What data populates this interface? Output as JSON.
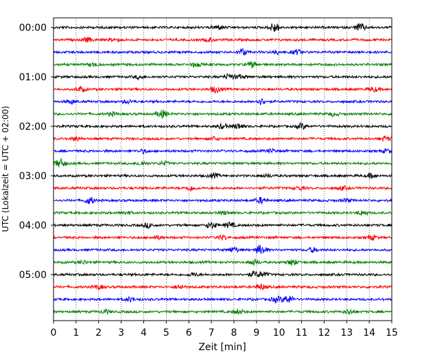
{
  "chart_data": {
    "type": "line",
    "title": "",
    "xlabel": "Zeit  [min]",
    "ylabel": "UTC (Lokalzeit = UTC + 02:00)",
    "xlim": [
      0,
      15
    ],
    "xticks": [
      "0",
      "1",
      "2",
      "3",
      "4",
      "5",
      "6",
      "7",
      "8",
      "9",
      "10",
      "11",
      "12",
      "13",
      "14",
      "15"
    ],
    "vertical_grid": "dotted",
    "row_minutes": 15,
    "row_colors": [
      "#000000",
      "#ff0000",
      "#0000ff",
      "#008000"
    ],
    "hour_labels": [
      "00:00",
      "01:00",
      "02:00",
      "03:00",
      "04:00",
      "05:00"
    ],
    "series": [
      {
        "start": "00:00",
        "events": [
          [
            7.3,
            0.4
          ],
          [
            9.8,
            0.9
          ],
          [
            13.6,
            0.7
          ]
        ]
      },
      {
        "start": "00:15",
        "events": [
          [
            1.5,
            0.4
          ],
          [
            2.7,
            0.3
          ],
          [
            6.9,
            0.3
          ]
        ]
      },
      {
        "start": "00:30",
        "events": [
          [
            8.4,
            0.6
          ],
          [
            10.8,
            0.4
          ],
          [
            9.9,
            0.3
          ]
        ]
      },
      {
        "start": "00:45",
        "events": [
          [
            1.8,
            0.3
          ],
          [
            6.3,
            0.4
          ],
          [
            8.8,
            0.5
          ]
        ]
      },
      {
        "start": "01:00",
        "events": [
          [
            3.8,
            0.3
          ],
          [
            7.8,
            0.5
          ],
          [
            8.3,
            0.3
          ]
        ]
      },
      {
        "start": "01:15",
        "events": [
          [
            1.2,
            0.4
          ],
          [
            7.2,
            0.6
          ],
          [
            14.2,
            0.4
          ]
        ]
      },
      {
        "start": "01:30",
        "events": [
          [
            0.8,
            0.3
          ],
          [
            3.3,
            0.3
          ],
          [
            9.2,
            0.5
          ]
        ]
      },
      {
        "start": "01:45",
        "events": [
          [
            2.6,
            0.3
          ],
          [
            4.8,
            0.7
          ],
          [
            12.4,
            0.3
          ]
        ]
      },
      {
        "start": "02:00",
        "events": [
          [
            7.5,
            0.4
          ],
          [
            8.2,
            0.5
          ],
          [
            11.0,
            0.5
          ]
        ]
      },
      {
        "start": "02:15",
        "events": [
          [
            1.0,
            0.3
          ],
          [
            7.1,
            0.3
          ],
          [
            14.7,
            0.4
          ]
        ]
      },
      {
        "start": "02:30",
        "events": [
          [
            4.0,
            0.3
          ],
          [
            9.7,
            0.3
          ],
          [
            14.8,
            0.3
          ]
        ]
      },
      {
        "start": "02:45",
        "events": [
          [
            0.3,
            0.8
          ],
          [
            3.9,
            0.4
          ],
          [
            4.9,
            0.3
          ]
        ]
      },
      {
        "start": "03:00",
        "events": [
          [
            7.1,
            0.4
          ],
          [
            9.5,
            0.3
          ],
          [
            14.1,
            0.4
          ]
        ]
      },
      {
        "start": "03:15",
        "events": [
          [
            6.1,
            0.4
          ],
          [
            10.9,
            0.3
          ],
          [
            12.8,
            0.3
          ]
        ]
      },
      {
        "start": "03:30",
        "events": [
          [
            1.6,
            0.6
          ],
          [
            9.2,
            0.5
          ],
          [
            13.0,
            0.3
          ]
        ]
      },
      {
        "start": "03:45",
        "events": [
          [
            3.2,
            0.3
          ],
          [
            7.6,
            0.3
          ],
          [
            13.7,
            0.4
          ]
        ]
      },
      {
        "start": "04:00",
        "events": [
          [
            4.2,
            0.4
          ],
          [
            7.0,
            0.6
          ],
          [
            7.8,
            0.5
          ]
        ]
      },
      {
        "start": "04:15",
        "events": [
          [
            4.6,
            0.3
          ],
          [
            7.5,
            0.4
          ],
          [
            14.1,
            0.4
          ]
        ]
      },
      {
        "start": "04:30",
        "events": [
          [
            8.0,
            0.5
          ],
          [
            9.2,
            0.9
          ],
          [
            11.5,
            0.4
          ]
        ]
      },
      {
        "start": "04:45",
        "events": [
          [
            1.3,
            0.3
          ],
          [
            8.9,
            0.5
          ],
          [
            10.6,
            0.5
          ]
        ]
      },
      {
        "start": "05:00",
        "events": [
          [
            6.2,
            0.3
          ],
          [
            8.9,
            0.5
          ],
          [
            9.3,
            0.4
          ]
        ]
      },
      {
        "start": "05:15",
        "events": [
          [
            2.0,
            0.3
          ],
          [
            5.6,
            0.4
          ],
          [
            9.2,
            0.5
          ]
        ]
      },
      {
        "start": "05:30",
        "events": [
          [
            3.4,
            0.4
          ],
          [
            9.9,
            0.5
          ],
          [
            10.4,
            0.7
          ]
        ]
      },
      {
        "start": "05:45",
        "events": [
          [
            2.3,
            0.3
          ],
          [
            8.2,
            0.4
          ],
          [
            13.1,
            0.4
          ]
        ]
      }
    ]
  }
}
